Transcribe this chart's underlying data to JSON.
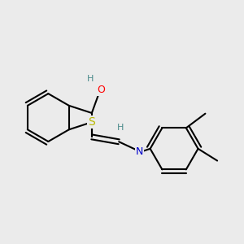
{
  "bg_color": "#ebebeb",
  "bond_color": "#000000",
  "bond_width": 1.5,
  "atom_colors": {
    "S": "#b8b800",
    "O": "#ff0000",
    "N": "#0000cc",
    "H": "#4a8a8a",
    "C": "#000000"
  },
  "font_size": 9,
  "fig_size": [
    3.0,
    3.0
  ],
  "dpi": 100
}
